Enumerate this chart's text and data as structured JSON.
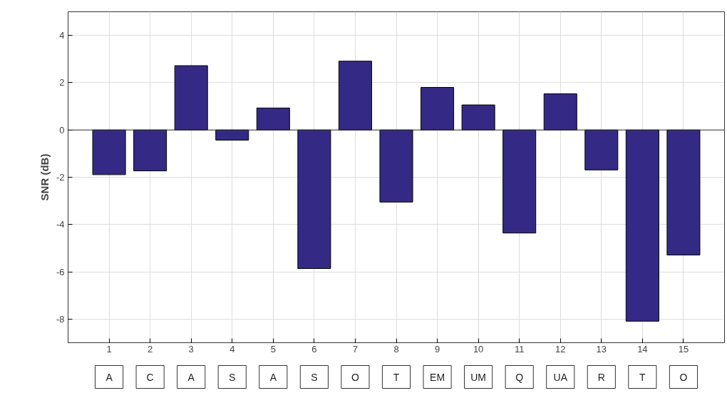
{
  "chart_data": {
    "type": "bar",
    "ylabel": "SNR (dB)",
    "x": [
      1,
      2,
      3,
      4,
      5,
      6,
      7,
      8,
      9,
      10,
      11,
      12,
      13,
      14,
      15
    ],
    "values": [
      -1.89,
      -1.73,
      2.72,
      -0.43,
      0.93,
      -5.86,
      2.91,
      -3.05,
      1.8,
      1.06,
      -4.36,
      1.53,
      -1.69,
      -8.09,
      -5.29
    ],
    "color": "#342a85",
    "xlim": [
      0,
      16
    ],
    "xticks": [
      1,
      2,
      3,
      4,
      5,
      6,
      7,
      8,
      9,
      10,
      11,
      12,
      13,
      14,
      15
    ],
    "ylim": [
      -9,
      5
    ],
    "yticks": [
      -8,
      -6,
      -4,
      -2,
      0,
      2,
      4
    ],
    "grid": true,
    "annotations": [
      "A",
      "C",
      "A",
      "S",
      "A",
      "S",
      "O",
      "T",
      "EM",
      "UM",
      "Q",
      "UA",
      "R",
      "T",
      "O"
    ]
  }
}
